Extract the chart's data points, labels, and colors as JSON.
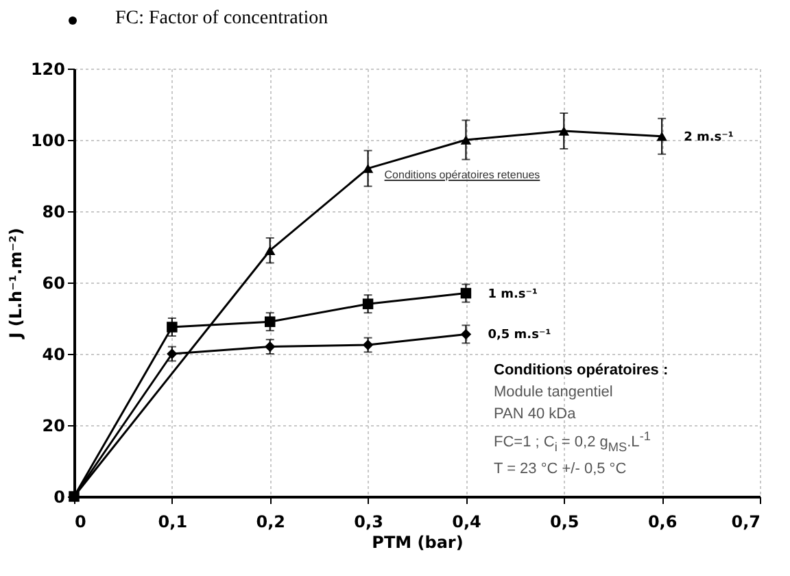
{
  "chart_data": {
    "type": "line",
    "title": "FC: Factor of concentration",
    "xlabel": "PTM (bar)",
    "ylabel": "J (L.h⁻¹.m⁻²)",
    "x": [
      0,
      0.1,
      0.2,
      0.3,
      0.4
    ],
    "series": [
      {
        "name": "2 m.s⁻¹",
        "color": "#000000",
        "marker": "triangle",
        "x": [
          0,
          0.2,
          0.3,
          0.4,
          0.5,
          0.6
        ],
        "values": [
          0,
          69,
          92,
          100,
          102.5,
          101
        ],
        "errors": [
          null,
          3.5,
          5,
          5.5,
          5,
          5
        ]
      },
      {
        "name": "1 m.s⁻¹",
        "color": "#000000",
        "marker": "square",
        "values": [
          0,
          47.5,
          49,
          54,
          57
        ],
        "errors": [
          null,
          2.5,
          2.5,
          2.5,
          2.5
        ]
      },
      {
        "name": "0,5 m.s⁻¹",
        "color": "#000000",
        "marker": "diamond",
        "values": [
          0,
          40,
          42,
          42.5,
          45.5
        ],
        "errors": [
          null,
          2,
          2,
          2,
          2.5
        ]
      }
    ],
    "xlim": [
      0,
      0.7
    ],
    "ylim": [
      0,
      120
    ],
    "xticks": [
      0,
      {
        "value": 0.1,
        "label": "0,1"
      },
      {
        "value": 0.2,
        "label": "0,2"
      },
      {
        "value": 0.3,
        "label": "0,3"
      },
      {
        "value": 0.4,
        "label": "0,4"
      },
      {
        "value": 0.5,
        "label": "0,5"
      },
      {
        "value": 0.6,
        "label": "0,6"
      },
      {
        "value": 0.7,
        "label": "0,7"
      }
    ],
    "yticks": [
      0,
      20,
      40,
      60,
      80,
      100,
      120
    ],
    "grid": true,
    "line_style": "solid",
    "annotations": [
      {
        "text": "Conditions opératoires retenues",
        "x": 0.3,
        "y": 92
      },
      "Conditions opératoires :",
      "Module tangentiel",
      "PAN 40 kDa",
      "FC=1 ; C$_{i}$ = 0,2 g$_{MS}$.L$^{-1}$",
      "T = 23 °C +/- 0,5 °C"
    ]
  }
}
